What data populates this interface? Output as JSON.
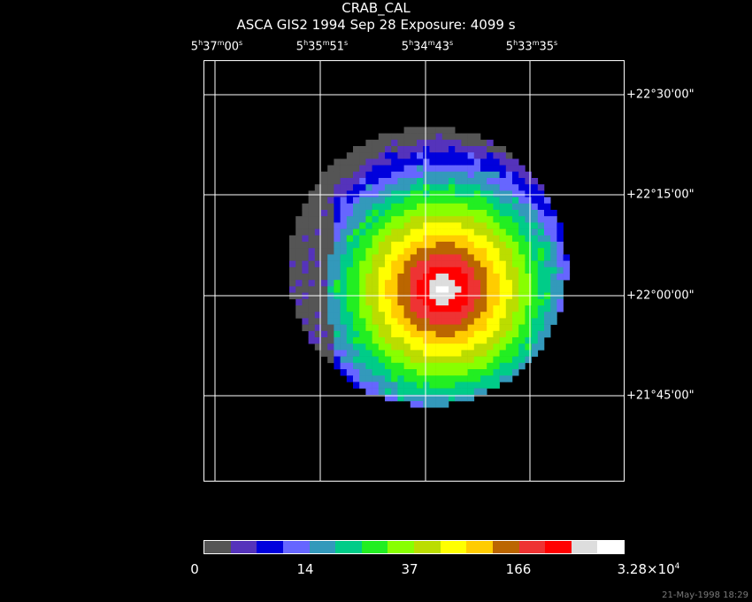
{
  "header": {
    "title": "CRAB_CAL",
    "subtitle": "ASCA GIS2   1994 Sep 28    Exposure:  4099 s"
  },
  "axes": {
    "ra_labels": [
      {
        "h": "5",
        "m": "37",
        "s": "00"
      },
      {
        "h": "5",
        "m": "35",
        "s": "51"
      },
      {
        "h": "5",
        "m": "34",
        "s": "43"
      },
      {
        "h": "5",
        "m": "33",
        "s": "35"
      }
    ],
    "dec_labels": [
      "+22°30'00\"",
      "+22°15'00\"",
      "+22°00'00\"",
      "+21°45'00\""
    ]
  },
  "colorbar": {
    "colors": [
      "#555555",
      "#5533bb",
      "#0000dd",
      "#6666ff",
      "#3399bb",
      "#00cc88",
      "#22ee22",
      "#88ff00",
      "#bbdd00",
      "#ffff00",
      "#ffcc00",
      "#bb6600",
      "#ee3333",
      "#ff0000",
      "#dddddd",
      "#ffffff"
    ],
    "labels": {
      "l0": "0",
      "l1": "14",
      "l2": "37",
      "l3": "166",
      "l4_mant": "3.28×10",
      "l4_exp": "4"
    }
  },
  "footer": {
    "timestamp": "21-May-1998 18:29"
  }
}
